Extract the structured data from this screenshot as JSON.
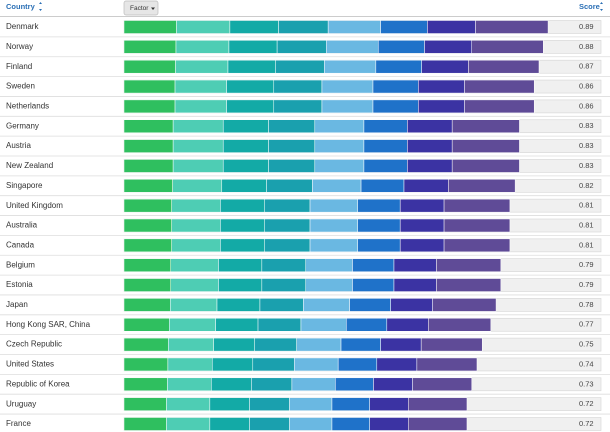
{
  "chart_data": {
    "type": "bar",
    "orientation": "horizontal",
    "stacked": true,
    "header": {
      "country": "Country",
      "factor": "Factor",
      "score": "Score"
    },
    "xlim": [
      0,
      1
    ],
    "categories": [
      "Denmark",
      "Norway",
      "Finland",
      "Sweden",
      "Netherlands",
      "Germany",
      "Austria",
      "New Zealand",
      "Singapore",
      "United Kingdom",
      "Australia",
      "Canada",
      "Belgium",
      "Estonia",
      "Japan",
      "Hong Kong SAR, China",
      "Czech Republic",
      "United States",
      "Republic of Korea",
      "Uruguay",
      "France"
    ],
    "scores": [
      0.89,
      0.88,
      0.87,
      0.86,
      0.86,
      0.83,
      0.83,
      0.83,
      0.82,
      0.81,
      0.81,
      0.81,
      0.79,
      0.79,
      0.78,
      0.77,
      0.75,
      0.74,
      0.73,
      0.72,
      0.72
    ],
    "series": [
      {
        "color": "#2fbf5f",
        "values": [
          0.11,
          0.109,
          0.108,
          0.107,
          0.107,
          0.103,
          0.103,
          0.103,
          0.102,
          0.1,
          0.1,
          0.1,
          0.098,
          0.098,
          0.097,
          0.095,
          0.093,
          0.092,
          0.091,
          0.089,
          0.089
        ]
      },
      {
        "color": "#4ecdb4",
        "values": [
          0.112,
          0.111,
          0.11,
          0.108,
          0.108,
          0.105,
          0.105,
          0.105,
          0.103,
          0.102,
          0.102,
          0.102,
          0.1,
          0.1,
          0.098,
          0.097,
          0.095,
          0.093,
          0.092,
          0.091,
          0.091
        ]
      },
      {
        "color": "#13aaa6",
        "values": [
          0.102,
          0.101,
          0.1,
          0.099,
          0.099,
          0.095,
          0.095,
          0.095,
          0.094,
          0.093,
          0.093,
          0.093,
          0.091,
          0.091,
          0.09,
          0.089,
          0.086,
          0.085,
          0.084,
          0.083,
          0.083
        ]
      },
      {
        "color": "#1aa0ae",
        "values": [
          0.104,
          0.103,
          0.102,
          0.101,
          0.101,
          0.097,
          0.097,
          0.097,
          0.096,
          0.095,
          0.095,
          0.095,
          0.092,
          0.092,
          0.091,
          0.09,
          0.088,
          0.087,
          0.085,
          0.084,
          0.084
        ]
      },
      {
        "color": "#6ab8e2",
        "values": [
          0.11,
          0.109,
          0.108,
          0.107,
          0.107,
          0.103,
          0.103,
          0.103,
          0.102,
          0.1,
          0.1,
          0.1,
          0.098,
          0.098,
          0.097,
          0.095,
          0.093,
          0.092,
          0.091,
          0.089,
          0.089
        ]
      },
      {
        "color": "#1f72c9",
        "values": [
          0.098,
          0.097,
          0.096,
          0.095,
          0.095,
          0.091,
          0.091,
          0.091,
          0.09,
          0.089,
          0.089,
          0.089,
          0.087,
          0.087,
          0.086,
          0.085,
          0.083,
          0.081,
          0.08,
          0.079,
          0.079
        ]
      },
      {
        "color": "#3b33a3",
        "values": [
          0.101,
          0.099,
          0.098,
          0.097,
          0.097,
          0.094,
          0.094,
          0.094,
          0.093,
          0.092,
          0.092,
          0.092,
          0.089,
          0.089,
          0.088,
          0.087,
          0.085,
          0.084,
          0.082,
          0.081,
          0.081
        ]
      },
      {
        "color": "#5f4b97",
        "values": [
          0.152,
          0.15,
          0.148,
          0.146,
          0.146,
          0.141,
          0.141,
          0.141,
          0.14,
          0.138,
          0.138,
          0.138,
          0.135,
          0.135,
          0.133,
          0.131,
          0.128,
          0.126,
          0.124,
          0.123,
          0.123
        ]
      }
    ]
  }
}
